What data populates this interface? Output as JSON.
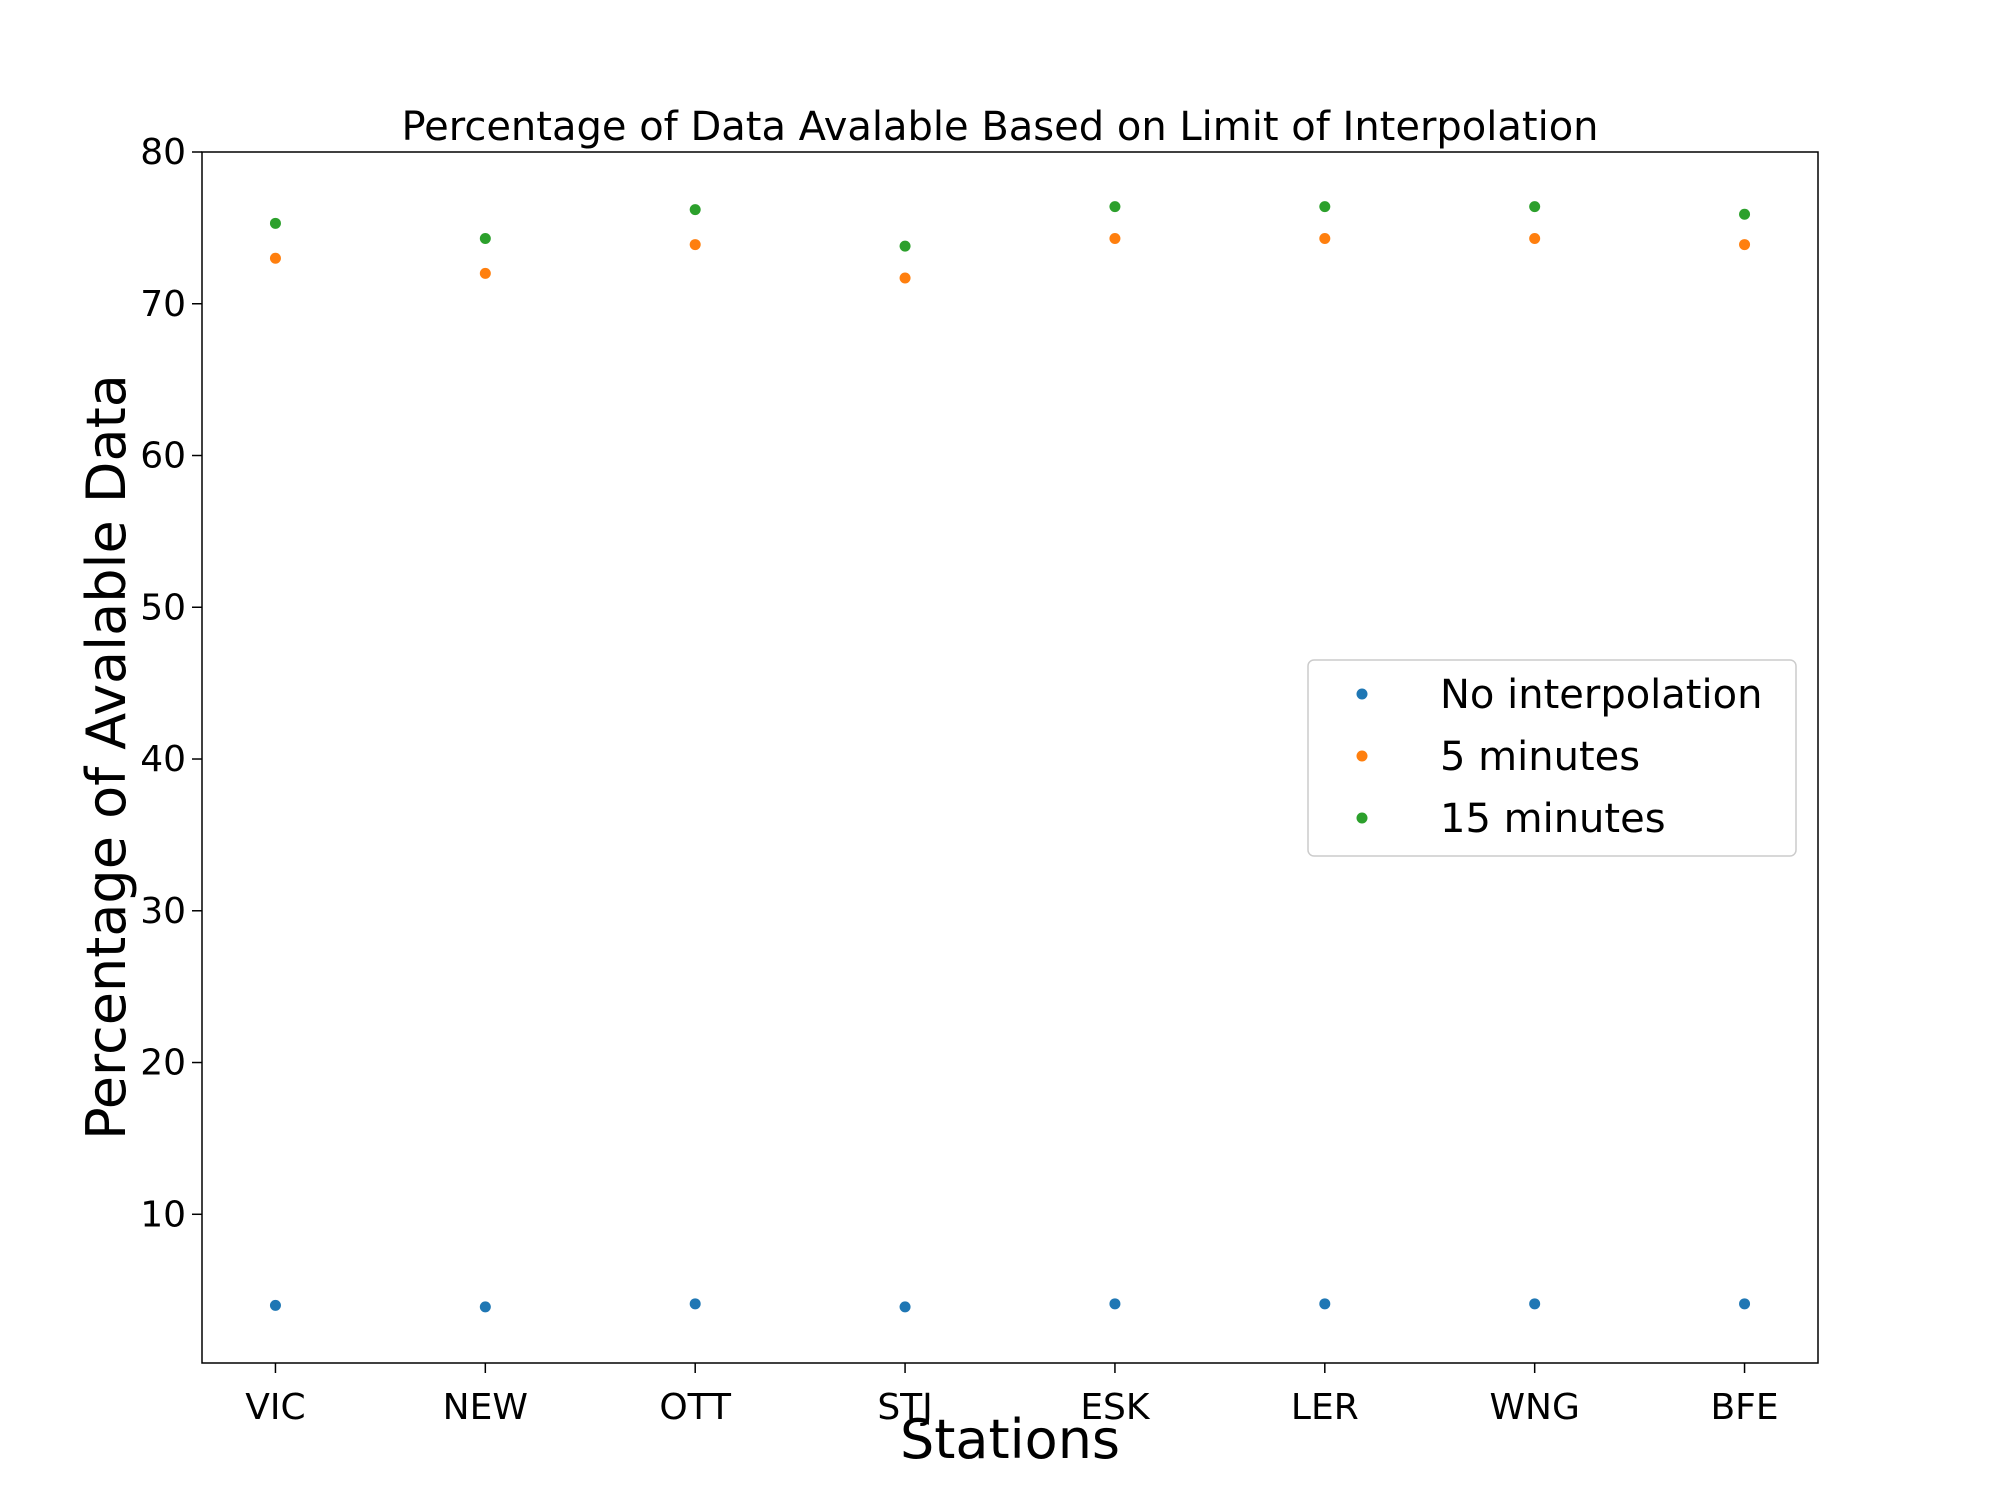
{
  "chart_data": {
    "type": "scatter",
    "title": "Percentage of Data Avalable Based on Limit of Interpolation",
    "xlabel": "Stations",
    "ylabel": "Percentage of Avalable Data",
    "categories": [
      "VIC",
      "NEW",
      "OTT",
      "STJ",
      "ESK",
      "LER",
      "WNG",
      "BFE"
    ],
    "yticks": [
      10,
      20,
      30,
      40,
      50,
      60,
      70,
      80
    ],
    "ylim": [
      0.2,
      80
    ],
    "grid": false,
    "legend_position": "center-right",
    "series": [
      {
        "name": "No interpolation",
        "color": "#1f77b4",
        "values": [
          4.0,
          3.9,
          4.1,
          3.9,
          4.1,
          4.1,
          4.1,
          4.1
        ]
      },
      {
        "name": "5 minutes",
        "color": "#ff7f0e",
        "values": [
          73.0,
          72.0,
          73.9,
          71.7,
          74.3,
          74.3,
          74.3,
          73.9
        ]
      },
      {
        "name": "15 minutes",
        "color": "#2ca02c",
        "values": [
          75.3,
          74.3,
          76.2,
          73.8,
          76.4,
          76.4,
          76.4,
          75.9
        ]
      }
    ]
  }
}
